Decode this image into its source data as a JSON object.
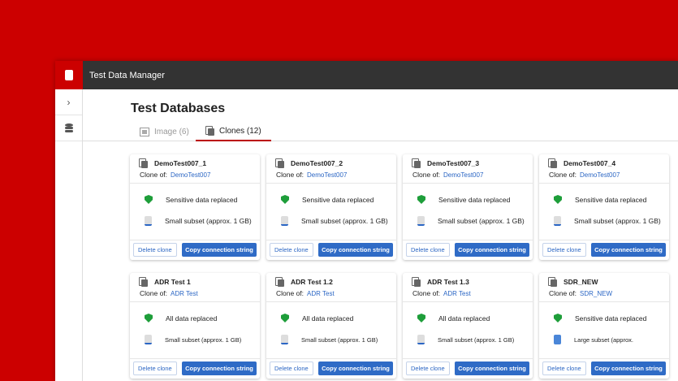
{
  "app": {
    "title": "Test Data Manager"
  },
  "page": {
    "title": "Test Databases"
  },
  "tabs": [
    {
      "label": "Image (6)"
    },
    {
      "label": "Clones (12)"
    }
  ],
  "labels": {
    "clone_of": "Clone of:",
    "delete": "Delete clone",
    "copy": "Copy connection string"
  },
  "cards": [
    {
      "name": "DemoTest007_1",
      "source": "DemoTest007",
      "data": "Sensitive data replaced",
      "subset": "Small subset (approx. 1 GB)"
    },
    {
      "name": "DemoTest007_2",
      "source": "DemoTest007",
      "data": "Sensitive data replaced",
      "subset": "Small subset (approx. 1 GB)"
    },
    {
      "name": "DemoTest007_3",
      "source": "DemoTest007",
      "data": "Sensitive data replaced",
      "subset": "Small subset (approx. 1 GB)"
    },
    {
      "name": "DemoTest007_4",
      "source": "DemoTest007",
      "data": "Sensitive data replaced",
      "subset": "Small subset (approx. 1 GB)"
    },
    {
      "name": "ADR Test 1",
      "source": "ADR Test",
      "data": "All data replaced",
      "subset": "Small subset (approx. 1 GB)"
    },
    {
      "name": "ADR Test 1.2",
      "source": "ADR Test",
      "data": "All data replaced",
      "subset": "Small subset (approx. 1 GB)"
    },
    {
      "name": "ADR Test 1.3",
      "source": "ADR Test",
      "data": "All data replaced",
      "subset": "Small subset (approx. 1 GB)"
    },
    {
      "name": "SDR_NEW",
      "source": "SDR_NEW",
      "data": "Sensitive data replaced",
      "subset": "Large subset (approx."
    }
  ]
}
